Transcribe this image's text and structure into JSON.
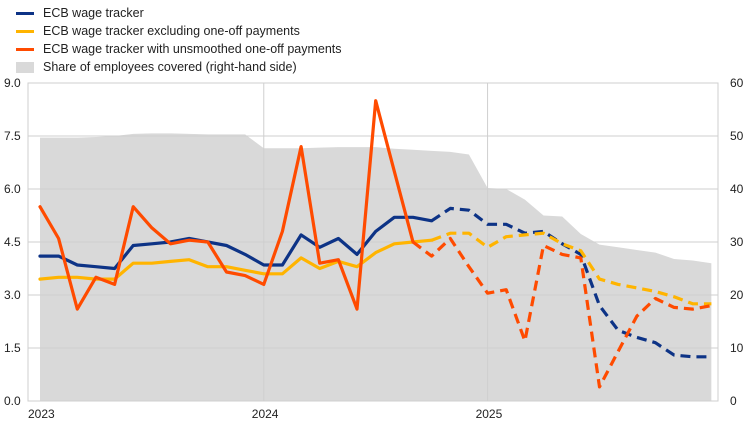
{
  "chart_data": {
    "type": "line",
    "x_labels": [
      "2023",
      "2024",
      "2025"
    ],
    "x_label_month_index": [
      0,
      12,
      24
    ],
    "ylim_left": [
      0,
      9
    ],
    "yticks_left": [
      "0.0",
      "1.5",
      "3.0",
      "4.5",
      "6.0",
      "7.5",
      "9.0"
    ],
    "ylim_right": [
      0,
      60
    ],
    "yticks_right": [
      "0",
      "10",
      "20",
      "30",
      "40",
      "50",
      "60"
    ],
    "legend_position": "top-left",
    "series": [
      {
        "name": "ECB wage tracker",
        "color": "#0d3386",
        "style": "solid-then-dashed",
        "dashed_from_month": 21,
        "x": [
          0,
          1,
          2,
          3,
          4,
          5,
          6,
          7,
          8,
          9,
          10,
          11,
          12,
          13,
          14,
          15,
          16,
          17,
          18,
          19,
          20,
          21,
          22,
          23,
          24,
          25,
          26,
          27,
          28,
          29,
          30,
          31,
          32,
          33,
          34,
          35,
          36
        ],
        "values": [
          4.1,
          4.1,
          3.85,
          3.8,
          3.75,
          4.4,
          4.45,
          4.5,
          4.6,
          4.5,
          4.4,
          4.15,
          3.85,
          3.85,
          4.7,
          4.35,
          4.6,
          4.15,
          4.8,
          5.2,
          5.2,
          5.1,
          5.45,
          5.4,
          5.0,
          5.0,
          4.75,
          4.8,
          4.45,
          4.15,
          2.7,
          2.0,
          1.8,
          1.65,
          1.3,
          1.25,
          1.25
        ]
      },
      {
        "name": "ECB wage tracker excluding one-off payments",
        "color": "#ffb400",
        "style": "solid-then-dashed",
        "dashed_from_month": 21,
        "x": [
          0,
          1,
          2,
          3,
          4,
          5,
          6,
          7,
          8,
          9,
          10,
          11,
          12,
          13,
          14,
          15,
          16,
          17,
          18,
          19,
          20,
          21,
          22,
          23,
          24,
          25,
          26,
          27,
          28,
          29,
          30,
          31,
          32,
          33,
          34,
          35,
          36
        ],
        "values": [
          3.45,
          3.5,
          3.5,
          3.45,
          3.45,
          3.9,
          3.9,
          3.95,
          4.0,
          3.8,
          3.8,
          3.7,
          3.6,
          3.6,
          4.05,
          3.75,
          3.95,
          3.8,
          4.2,
          4.45,
          4.5,
          4.55,
          4.75,
          4.75,
          4.35,
          4.65,
          4.7,
          4.75,
          4.45,
          4.25,
          3.45,
          3.3,
          3.2,
          3.1,
          2.95,
          2.75,
          2.75
        ]
      },
      {
        "name": "ECB wage tracker with unsmoothed one-off payments",
        "color": "#ff4b00",
        "style": "solid-then-dashed",
        "dashed_from_month": 20,
        "x": [
          0,
          1,
          2,
          3,
          4,
          5,
          6,
          7,
          8,
          9,
          10,
          11,
          12,
          13,
          14,
          15,
          16,
          17,
          18,
          19,
          20,
          21,
          22,
          23,
          24,
          25,
          26,
          27,
          28,
          29,
          30,
          31,
          32,
          33,
          34,
          35,
          36
        ],
        "values": [
          5.5,
          4.6,
          2.6,
          3.5,
          3.3,
          5.5,
          4.9,
          4.45,
          4.55,
          4.5,
          3.65,
          3.55,
          3.3,
          4.8,
          7.2,
          3.9,
          4.0,
          2.6,
          8.5,
          6.5,
          4.5,
          4.1,
          4.6,
          3.8,
          3.05,
          3.15,
          1.7,
          4.4,
          4.15,
          4.05,
          0.4,
          1.4,
          2.4,
          2.9,
          2.65,
          2.6,
          2.7
        ]
      },
      {
        "name": "Share of employees covered (right-hand side)",
        "color": "#d9d9d9",
        "style": "area",
        "axis": "right",
        "x": [
          0,
          1,
          2,
          3,
          4,
          5,
          6,
          7,
          8,
          9,
          10,
          11,
          12,
          13,
          14,
          15,
          16,
          17,
          18,
          19,
          20,
          21,
          22,
          23,
          24,
          25,
          26,
          27,
          28,
          29,
          30,
          31,
          32,
          33,
          34,
          35,
          36
        ],
        "values": [
          49.7,
          49.7,
          49.7,
          49.8,
          50.0,
          50.4,
          50.5,
          50.5,
          50.4,
          50.3,
          50.3,
          50.3,
          47.7,
          47.7,
          47.7,
          47.8,
          47.9,
          47.9,
          47.9,
          47.6,
          47.4,
          47.2,
          47.0,
          46.5,
          40.2,
          40.0,
          38.0,
          35.0,
          34.8,
          31.5,
          29.5,
          29.0,
          28.5,
          28.0,
          26.8,
          26.5,
          26.0
        ]
      }
    ]
  }
}
